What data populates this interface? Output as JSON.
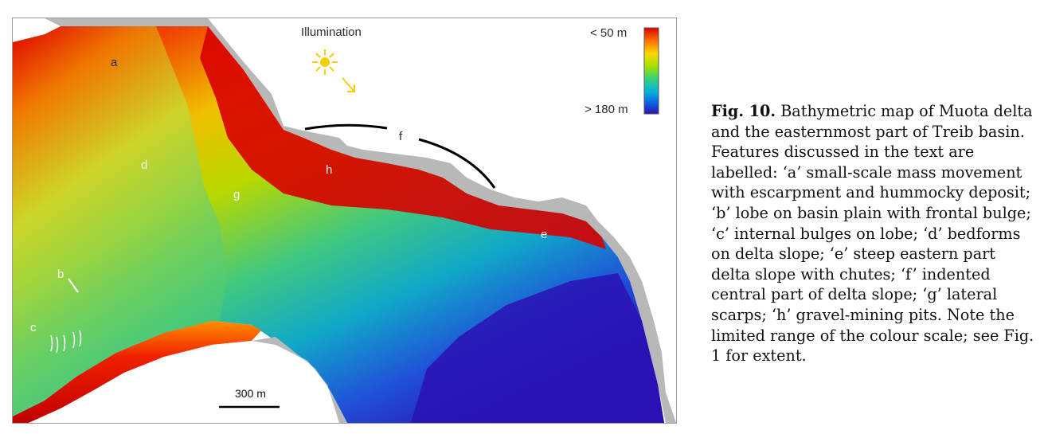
{
  "figure": {
    "illumination_label": "Illumination",
    "colour_scale": {
      "top_label": "< 50 m",
      "bottom_label": "> 180 m",
      "colors": [
        "#e00000",
        "#ff8c00",
        "#ffd800",
        "#b8e000",
        "#30d080",
        "#00b8d0",
        "#1060e0",
        "#2a10b8"
      ]
    },
    "scale_bar_label": "300 m",
    "feature_labels": {
      "a": "a",
      "b": "b",
      "c": "c",
      "d": "d",
      "e": "e",
      "f": "f",
      "g": "g",
      "h": "h"
    }
  },
  "caption": {
    "figure_number": "Fig. 10.",
    "text": "Bathymetric map of Muota delta and the easternmost part of Treib basin. Features discussed in the text are labelled: ‘a’ small-scale mass movement with escarpment and hummocky deposit; ‘b’ lobe on basin plain with frontal bulge; ‘c’ internal bulges on lobe; ‘d’ bedforms on delta slope; ‘e’ steep eastern part delta slope with chutes; ‘f’ indented central part of delta slope; ‘g’ lateral scarps; ‘h’ gravel-mining pits. Note the limited range of the colour scale; see Fig. 1 for extent."
  }
}
